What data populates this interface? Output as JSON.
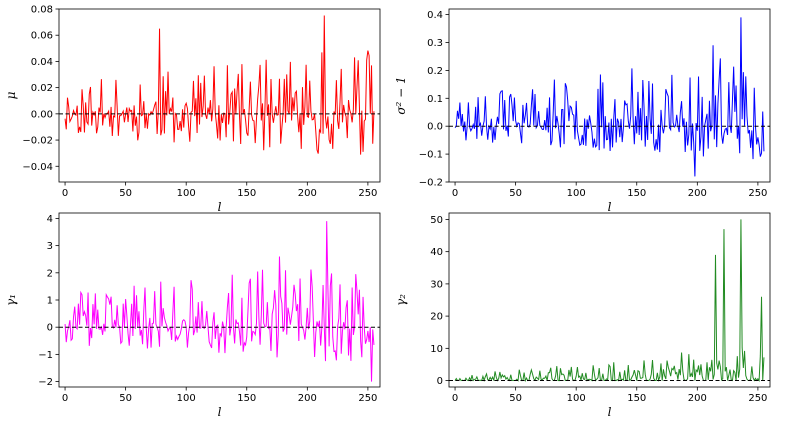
{
  "chart_data": [
    {
      "type": "line",
      "panel": "top-left",
      "title": "",
      "xlabel": "l",
      "ylabel": "μ",
      "xlim": [
        -5,
        260
      ],
      "ylim": [
        -0.052,
        0.08
      ],
      "xticks": [
        0,
        50,
        100,
        150,
        200,
        250
      ],
      "xtick_labels": [
        "0",
        "50",
        "100",
        "150",
        "200",
        "250"
      ],
      "yticks": [
        -0.04,
        -0.02,
        0.0,
        0.02,
        0.04,
        0.06,
        0.08
      ],
      "ytick_labels": [
        "−0.04",
        "−0.02",
        "0.00",
        "0.02",
        "0.04",
        "0.06",
        "0.08"
      ],
      "reference_line": 0,
      "color": "#ff0000",
      "x_range": [
        0,
        255
      ],
      "y_range": [
        -0.05,
        0.075
      ],
      "peaks": [
        {
          "x": 78,
          "y": 0.065
        },
        {
          "x": 214,
          "y": 0.075
        }
      ],
      "seed": 11,
      "grid": false
    },
    {
      "type": "line",
      "panel": "top-right",
      "title": "",
      "xlabel": "l",
      "ylabel": "σ² − 1",
      "xlim": [
        -5,
        260
      ],
      "ylim": [
        -0.2,
        0.42
      ],
      "xticks": [
        0,
        50,
        100,
        150,
        200,
        250
      ],
      "xtick_labels": [
        "0",
        "50",
        "100",
        "150",
        "200",
        "250"
      ],
      "yticks": [
        -0.2,
        -0.1,
        0.0,
        0.1,
        0.2,
        0.3,
        0.4
      ],
      "ytick_labels": [
        "−0.2",
        "−0.1",
        "0.0",
        "0.1",
        "0.2",
        "0.3",
        "0.4"
      ],
      "reference_line": 0,
      "color": "#0000ff",
      "x_range": [
        0,
        255
      ],
      "y_range": [
        -0.18,
        0.39
      ],
      "peaks": [
        {
          "x": 213,
          "y": 0.29
        },
        {
          "x": 236,
          "y": 0.39
        },
        {
          "x": 198,
          "y": -0.18
        }
      ],
      "seed": 23,
      "grid": false
    },
    {
      "type": "line",
      "panel": "bottom-left",
      "title": "",
      "xlabel": "l",
      "ylabel": "γ₁",
      "xlim": [
        -5,
        260
      ],
      "ylim": [
        -2.2,
        4.2
      ],
      "xticks": [
        0,
        50,
        100,
        150,
        200,
        250
      ],
      "xtick_labels": [
        "0",
        "50",
        "100",
        "150",
        "200",
        "250"
      ],
      "yticks": [
        -2,
        -1,
        0,
        1,
        2,
        3,
        4
      ],
      "ytick_labels": [
        "−2",
        "−1",
        "0",
        "1",
        "2",
        "3",
        "4"
      ],
      "reference_line": 0,
      "color": "#ff00ff",
      "x_range": [
        0,
        255
      ],
      "y_range": [
        -2.0,
        3.9
      ],
      "peaks": [
        {
          "x": 216,
          "y": 3.9
        },
        {
          "x": 177,
          "y": 2.6
        },
        {
          "x": 253,
          "y": -2.0
        }
      ],
      "seed": 37,
      "grid": false
    },
    {
      "type": "line",
      "panel": "bottom-right",
      "title": "",
      "xlabel": "l",
      "ylabel": "γ₂",
      "xlim": [
        -5,
        260
      ],
      "ylim": [
        -2,
        52
      ],
      "xticks": [
        0,
        50,
        100,
        150,
        200,
        250
      ],
      "xtick_labels": [
        "0",
        "50",
        "100",
        "150",
        "200",
        "250"
      ],
      "yticks": [
        0,
        10,
        20,
        30,
        40,
        50
      ],
      "ytick_labels": [
        "0",
        "10",
        "20",
        "30",
        "40",
        "50"
      ],
      "reference_line": 0,
      "color": "#228b22",
      "x_range": [
        0,
        255
      ],
      "y_range": [
        0,
        50
      ],
      "peaks": [
        {
          "x": 236,
          "y": 50
        },
        {
          "x": 222,
          "y": 47
        },
        {
          "x": 215,
          "y": 39
        },
        {
          "x": 253,
          "y": 26
        }
      ],
      "seed": 53,
      "grid": false
    }
  ]
}
